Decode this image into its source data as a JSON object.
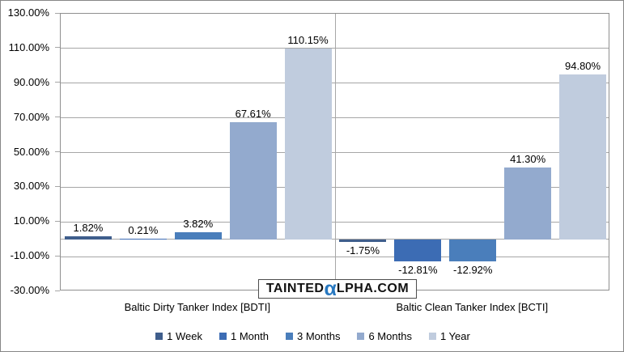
{
  "chart_data": {
    "type": "bar",
    "categories": [
      "Baltic Dirty Tanker Index [BDTI]",
      "Baltic Clean Tanker Index [BCTI]"
    ],
    "series": [
      {
        "name": "1 Week",
        "color": "#3f5e8c",
        "values": [
          1.82,
          -1.75
        ]
      },
      {
        "name": "1 Month",
        "color": "#3c6cb4",
        "values": [
          0.21,
          -12.81
        ]
      },
      {
        "name": "3 Months",
        "color": "#4a7ebb",
        "values": [
          3.82,
          -12.92
        ]
      },
      {
        "name": "6 Months",
        "color": "#93aace",
        "values": [
          67.61,
          41.3
        ]
      },
      {
        "name": "1 Year",
        "color": "#c0ccde",
        "values": [
          110.15,
          94.8
        ]
      }
    ],
    "title": "",
    "xlabel": "",
    "ylabel": "",
    "ylim": [
      -30,
      130
    ],
    "ytick_step": 20,
    "ytick_format": "0.00%",
    "grid": true,
    "data_labels": true,
    "legend_position": "bottom",
    "colors": {
      "gridline": "#a6a6a6",
      "plot_border": "#8f8f8f",
      "background": "#ffffff",
      "text": "#000000"
    }
  },
  "watermark": {
    "pre": "TAINTED",
    "alpha": "α",
    "post": "LPHA.COM",
    "alpha_color": "#2878c0"
  }
}
